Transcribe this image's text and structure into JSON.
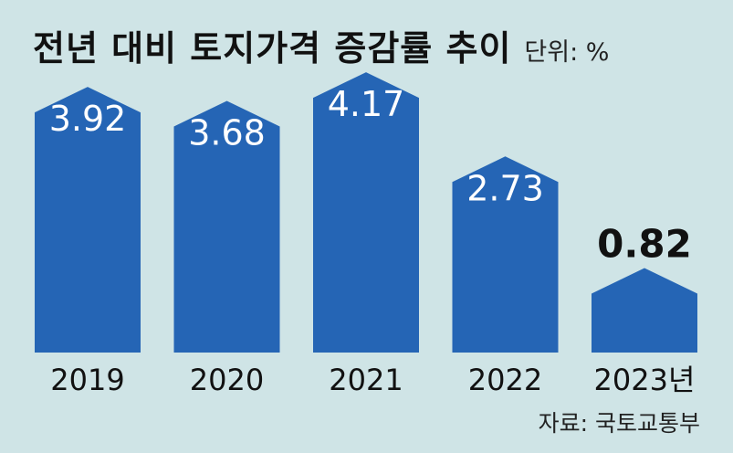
{
  "title": "전년 대비 토지가격 증감률 추이",
  "unit": "단위: %",
  "source": "자료: 국토교통부",
  "colors": {
    "bar": "#2565b5",
    "label_on_bar": "#ffffff",
    "label_above": "#111111",
    "background": "#cfe4e6"
  },
  "chart_data": {
    "type": "bar",
    "categories": [
      "2019",
      "2020",
      "2021",
      "2022",
      "2023년"
    ],
    "values": [
      3.92,
      3.68,
      4.17,
      2.73,
      0.82
    ],
    "value_labels": [
      "3.92",
      "3.68",
      "4.17",
      "2.73",
      "0.82"
    ],
    "highlight_index": 4,
    "title": "전년 대비 토지가격 증감률 추이",
    "unit": "%",
    "xlabel": "",
    "ylabel": "",
    "grid": false,
    "legend": "none"
  }
}
